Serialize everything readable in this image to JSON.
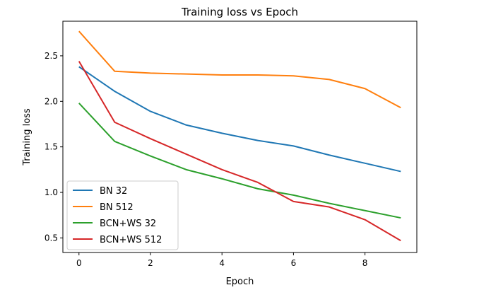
{
  "chart_data": {
    "type": "line",
    "title": "Training loss vs Epoch",
    "xlabel": "Epoch",
    "ylabel": "Training loss",
    "xlim": [
      -0.45,
      9.45
    ],
    "ylim": [
      0.34,
      2.88
    ],
    "x_ticks": [
      0,
      2,
      4,
      6,
      8
    ],
    "y_ticks": [
      0.5,
      1.0,
      1.5,
      2.0,
      2.5
    ],
    "x_tick_labels": [
      "0",
      "2",
      "4",
      "6",
      "8"
    ],
    "y_tick_labels": [
      "0.5",
      "1.0",
      "1.5",
      "2.0",
      "2.5"
    ],
    "grid": false,
    "legend_position": "lower-left",
    "x": [
      0,
      1,
      2,
      3,
      4,
      5,
      6,
      7,
      8,
      9
    ],
    "series": [
      {
        "name": "BN 32",
        "color": "#1f77b4",
        "values": [
          2.38,
          2.11,
          1.89,
          1.74,
          1.65,
          1.57,
          1.51,
          1.41,
          1.32,
          1.23
        ]
      },
      {
        "name": "BN 512",
        "color": "#ff7f0e",
        "values": [
          2.77,
          2.33,
          2.31,
          2.3,
          2.29,
          2.29,
          2.28,
          2.24,
          2.14,
          1.93
        ]
      },
      {
        "name": "BCN+WS 32",
        "color": "#2ca02c",
        "values": [
          1.98,
          1.56,
          1.4,
          1.25,
          1.15,
          1.04,
          0.97,
          0.88,
          0.8,
          0.72
        ]
      },
      {
        "name": "BCN+WS 512",
        "color": "#d62728",
        "values": [
          2.44,
          1.77,
          1.59,
          1.42,
          1.25,
          1.11,
          0.9,
          0.84,
          0.7,
          0.47
        ]
      }
    ]
  }
}
